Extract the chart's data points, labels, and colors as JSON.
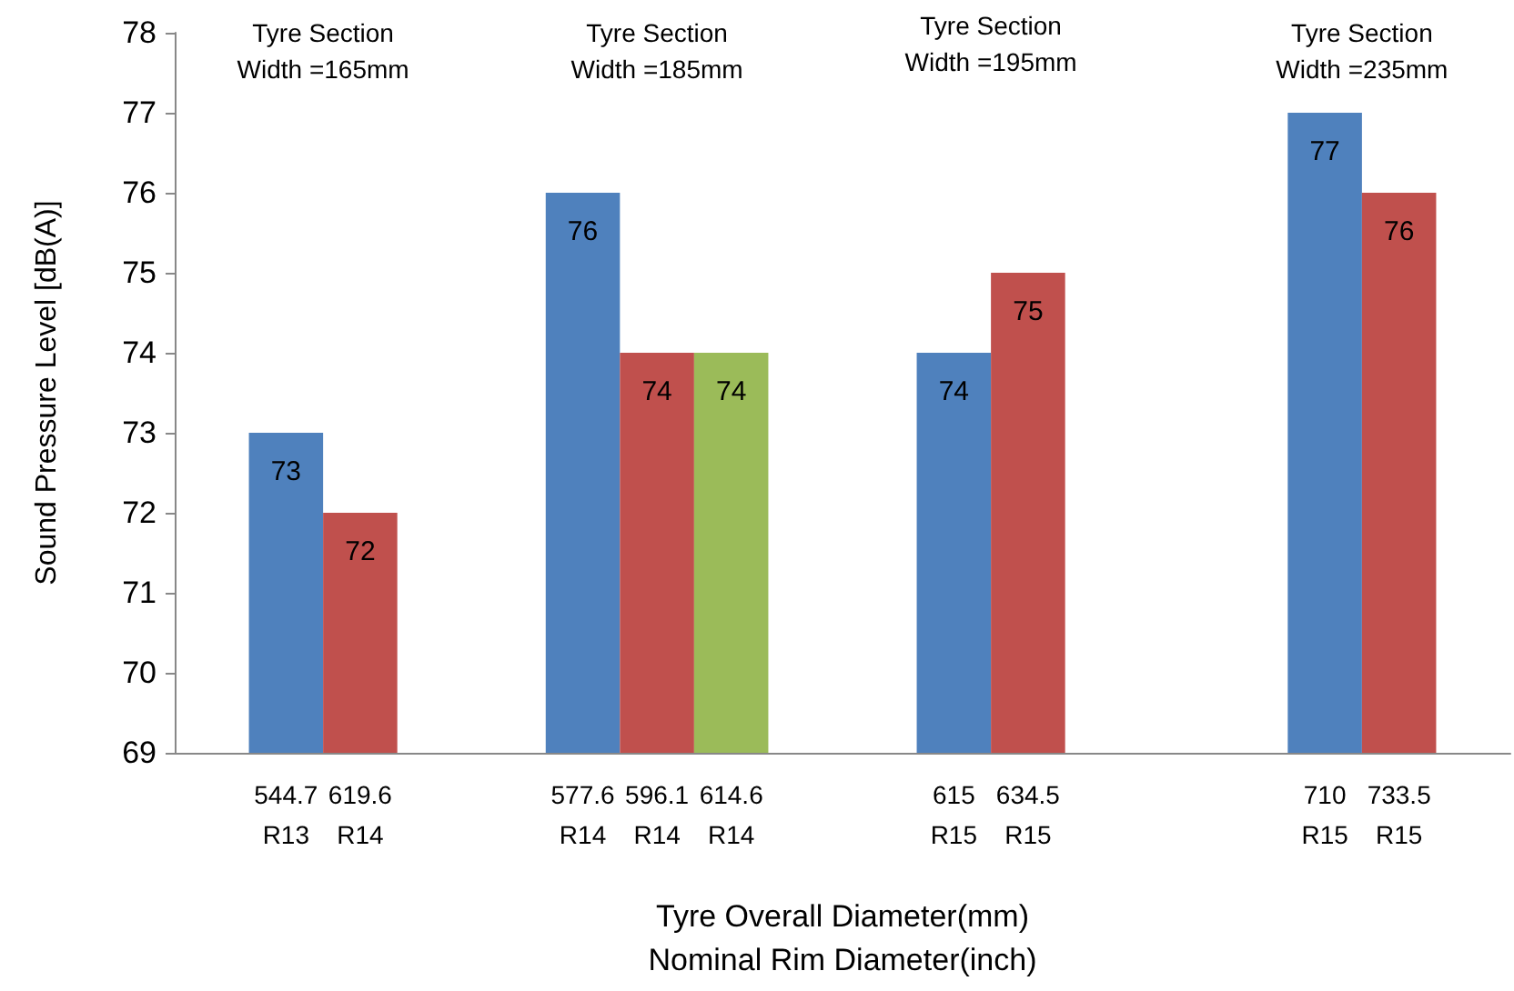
{
  "chart_data": {
    "type": "bar",
    "xlabel": "Tyre Overall Diameter(mm)\nNominal Rim Diameter(inch)",
    "ylabel": "Sound Pressure Level [dB(A)]",
    "categories": [
      null,
      "544.7\nR13",
      "619.6\nR14",
      null,
      null,
      "577.6\nR14",
      "596.1\nR14",
      "614.6\nR14",
      null,
      null,
      "615\nR15",
      "634.5\nR15",
      null,
      null,
      null,
      "710\nR15",
      "733.5\nR15",
      null
    ],
    "values": [
      null,
      73,
      72,
      null,
      null,
      76,
      74,
      74,
      null,
      null,
      74,
      75,
      null,
      null,
      null,
      77,
      76,
      null
    ],
    "colors": [
      null,
      "#4f81bd",
      "#c0504d",
      null,
      null,
      "#4f81bd",
      "#c0504d",
      "#9bbb59",
      null,
      null,
      "#4f81bd",
      "#c0504d",
      null,
      null,
      null,
      "#4f81bd",
      "#c0504d",
      null
    ],
    "ylim": [
      69,
      78
    ],
    "yticks": [
      69,
      70,
      71,
      72,
      73,
      74,
      75,
      76,
      77,
      78
    ],
    "data_labels": true,
    "grid": false,
    "annotations": [
      "Tyre Section\nWidth =165mm",
      "Tyre Section\nWidth =185mm",
      "Tyre Section\nWidth =195mm",
      "Tyre Section\nWidth =235mm"
    ]
  }
}
